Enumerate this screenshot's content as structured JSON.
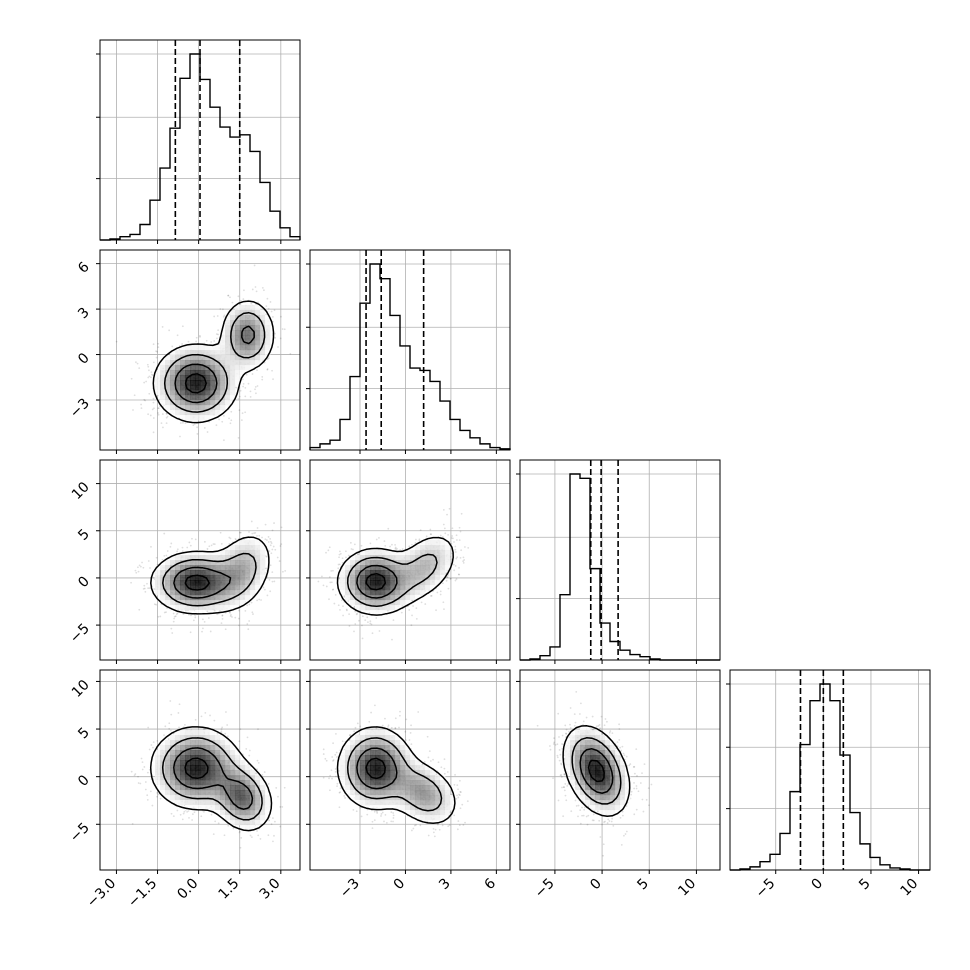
{
  "chart_data": {
    "type": "corner",
    "description_free": true,
    "grid": true,
    "n_params": 4,
    "tick_labels": {
      "p0_x": [
        "−3.0",
        "−1.5",
        "0.0",
        "1.5",
        "3.0"
      ],
      "p1_x": [
        "−3",
        "0",
        "3",
        "6"
      ],
      "p2_x": [
        "−5",
        "0",
        "5",
        "10"
      ],
      "p3_x": [
        "−5",
        "0",
        "5",
        "10"
      ],
      "p1_y": [
        "6",
        "3",
        "0",
        "−3"
      ],
      "p2_y": [
        "10",
        "5",
        "0",
        "−5"
      ],
      "p3_y": [
        "10",
        "5",
        "0",
        "−5"
      ]
    },
    "ticks": {
      "p0": [
        -3.0,
        -1.5,
        0.0,
        1.5,
        3.0
      ],
      "p1": [
        -3,
        0,
        3,
        6
      ],
      "p2": [
        -5,
        0,
        5,
        10
      ],
      "p3": [
        -5,
        0,
        5,
        10
      ]
    },
    "ranges": {
      "p0": [
        -3.6,
        3.7
      ],
      "p1": [
        -6.3,
        6.9
      ],
      "p2": [
        -8.7,
        12.5
      ],
      "p3": [
        -9.8,
        11.2
      ]
    },
    "histograms": [
      {
        "param": "p0",
        "x_start": -3.6,
        "bin_width": 0.365,
        "counts": [
          0,
          1,
          3,
          5,
          14,
          36,
          65,
          101,
          146,
          168,
          145,
          120,
          102,
          93,
          95,
          80,
          52,
          26,
          11,
          3
        ],
        "quantiles": [
          -0.85,
          0.05,
          1.5
        ]
      },
      {
        "param": "p1",
        "x_start": -6.3,
        "bin_width": 0.66,
        "counts": [
          2,
          5,
          8,
          25,
          60,
          120,
          152,
          140,
          110,
          85,
          67,
          65,
          56,
          40,
          25,
          16,
          10,
          5,
          2,
          1
        ],
        "quantiles": [
          -2.6,
          -1.6,
          1.2
        ]
      },
      {
        "param": "p2",
        "x_start": -8.7,
        "bin_width": 1.06,
        "counts": [
          0,
          1,
          4,
          12,
          60,
          171,
          167,
          84,
          34,
          17,
          9,
          5,
          3,
          1,
          0,
          0,
          0,
          0,
          0,
          0
        ],
        "quantiles": [
          -1.2,
          -0.1,
          1.7
        ]
      },
      {
        "param": "p3",
        "x_start": -9.8,
        "bin_width": 1.05,
        "counts": [
          0,
          1,
          3,
          8,
          15,
          35,
          75,
          120,
          162,
          178,
          162,
          110,
          55,
          25,
          12,
          5,
          2,
          1,
          0,
          0
        ],
        "quantiles": [
          -2.4,
          0.0,
          2.1
        ]
      }
    ],
    "joint": [
      {
        "x": "p0",
        "y": "p1",
        "components": [
          {
            "mx": -0.1,
            "my": -1.9,
            "sx": 0.75,
            "sy": 1.25,
            "rho": 0.0,
            "w": 0.7
          },
          {
            "mx": 1.8,
            "my": 1.3,
            "sx": 0.5,
            "sy": 1.2,
            "rho": 0.0,
            "w": 0.3
          }
        ]
      },
      {
        "x": "p0",
        "y": "p2",
        "components": [
          {
            "mx": -0.1,
            "my": -0.5,
            "sx": 0.8,
            "sy": 1.6,
            "rho": 0.0,
            "w": 0.7
          },
          {
            "mx": 1.6,
            "my": 0.8,
            "sx": 0.6,
            "sy": 2.2,
            "rho": 0.3,
            "w": 0.3
          }
        ]
      },
      {
        "x": "p1",
        "y": "p2",
        "components": [
          {
            "mx": -2.0,
            "my": -0.4,
            "sx": 1.2,
            "sy": 1.7,
            "rho": 0.0,
            "w": 0.7
          },
          {
            "mx": 1.3,
            "my": 1.2,
            "sx": 1.2,
            "sy": 2.0,
            "rho": 0.4,
            "w": 0.3
          }
        ]
      },
      {
        "x": "p0",
        "y": "p3",
        "components": [
          {
            "mx": -0.1,
            "my": 0.9,
            "sx": 0.8,
            "sy": 2.1,
            "rho": 0.0,
            "w": 0.7
          },
          {
            "mx": 1.6,
            "my": -2.2,
            "sx": 0.55,
            "sy": 1.8,
            "rho": -0.2,
            "w": 0.3
          }
        ]
      },
      {
        "x": "p1",
        "y": "p3",
        "components": [
          {
            "mx": -2.0,
            "my": 0.9,
            "sx": 1.2,
            "sy": 2.1,
            "rho": 0.0,
            "w": 0.7
          },
          {
            "mx": 1.2,
            "my": -1.8,
            "sx": 1.2,
            "sy": 1.8,
            "rho": -0.3,
            "w": 0.3
          }
        ]
      },
      {
        "x": "p2",
        "y": "p3",
        "components": [
          {
            "mx": -0.6,
            "my": 0.6,
            "sx": 1.7,
            "sy": 2.3,
            "rho": -0.35,
            "w": 1.0
          }
        ]
      }
    ]
  }
}
